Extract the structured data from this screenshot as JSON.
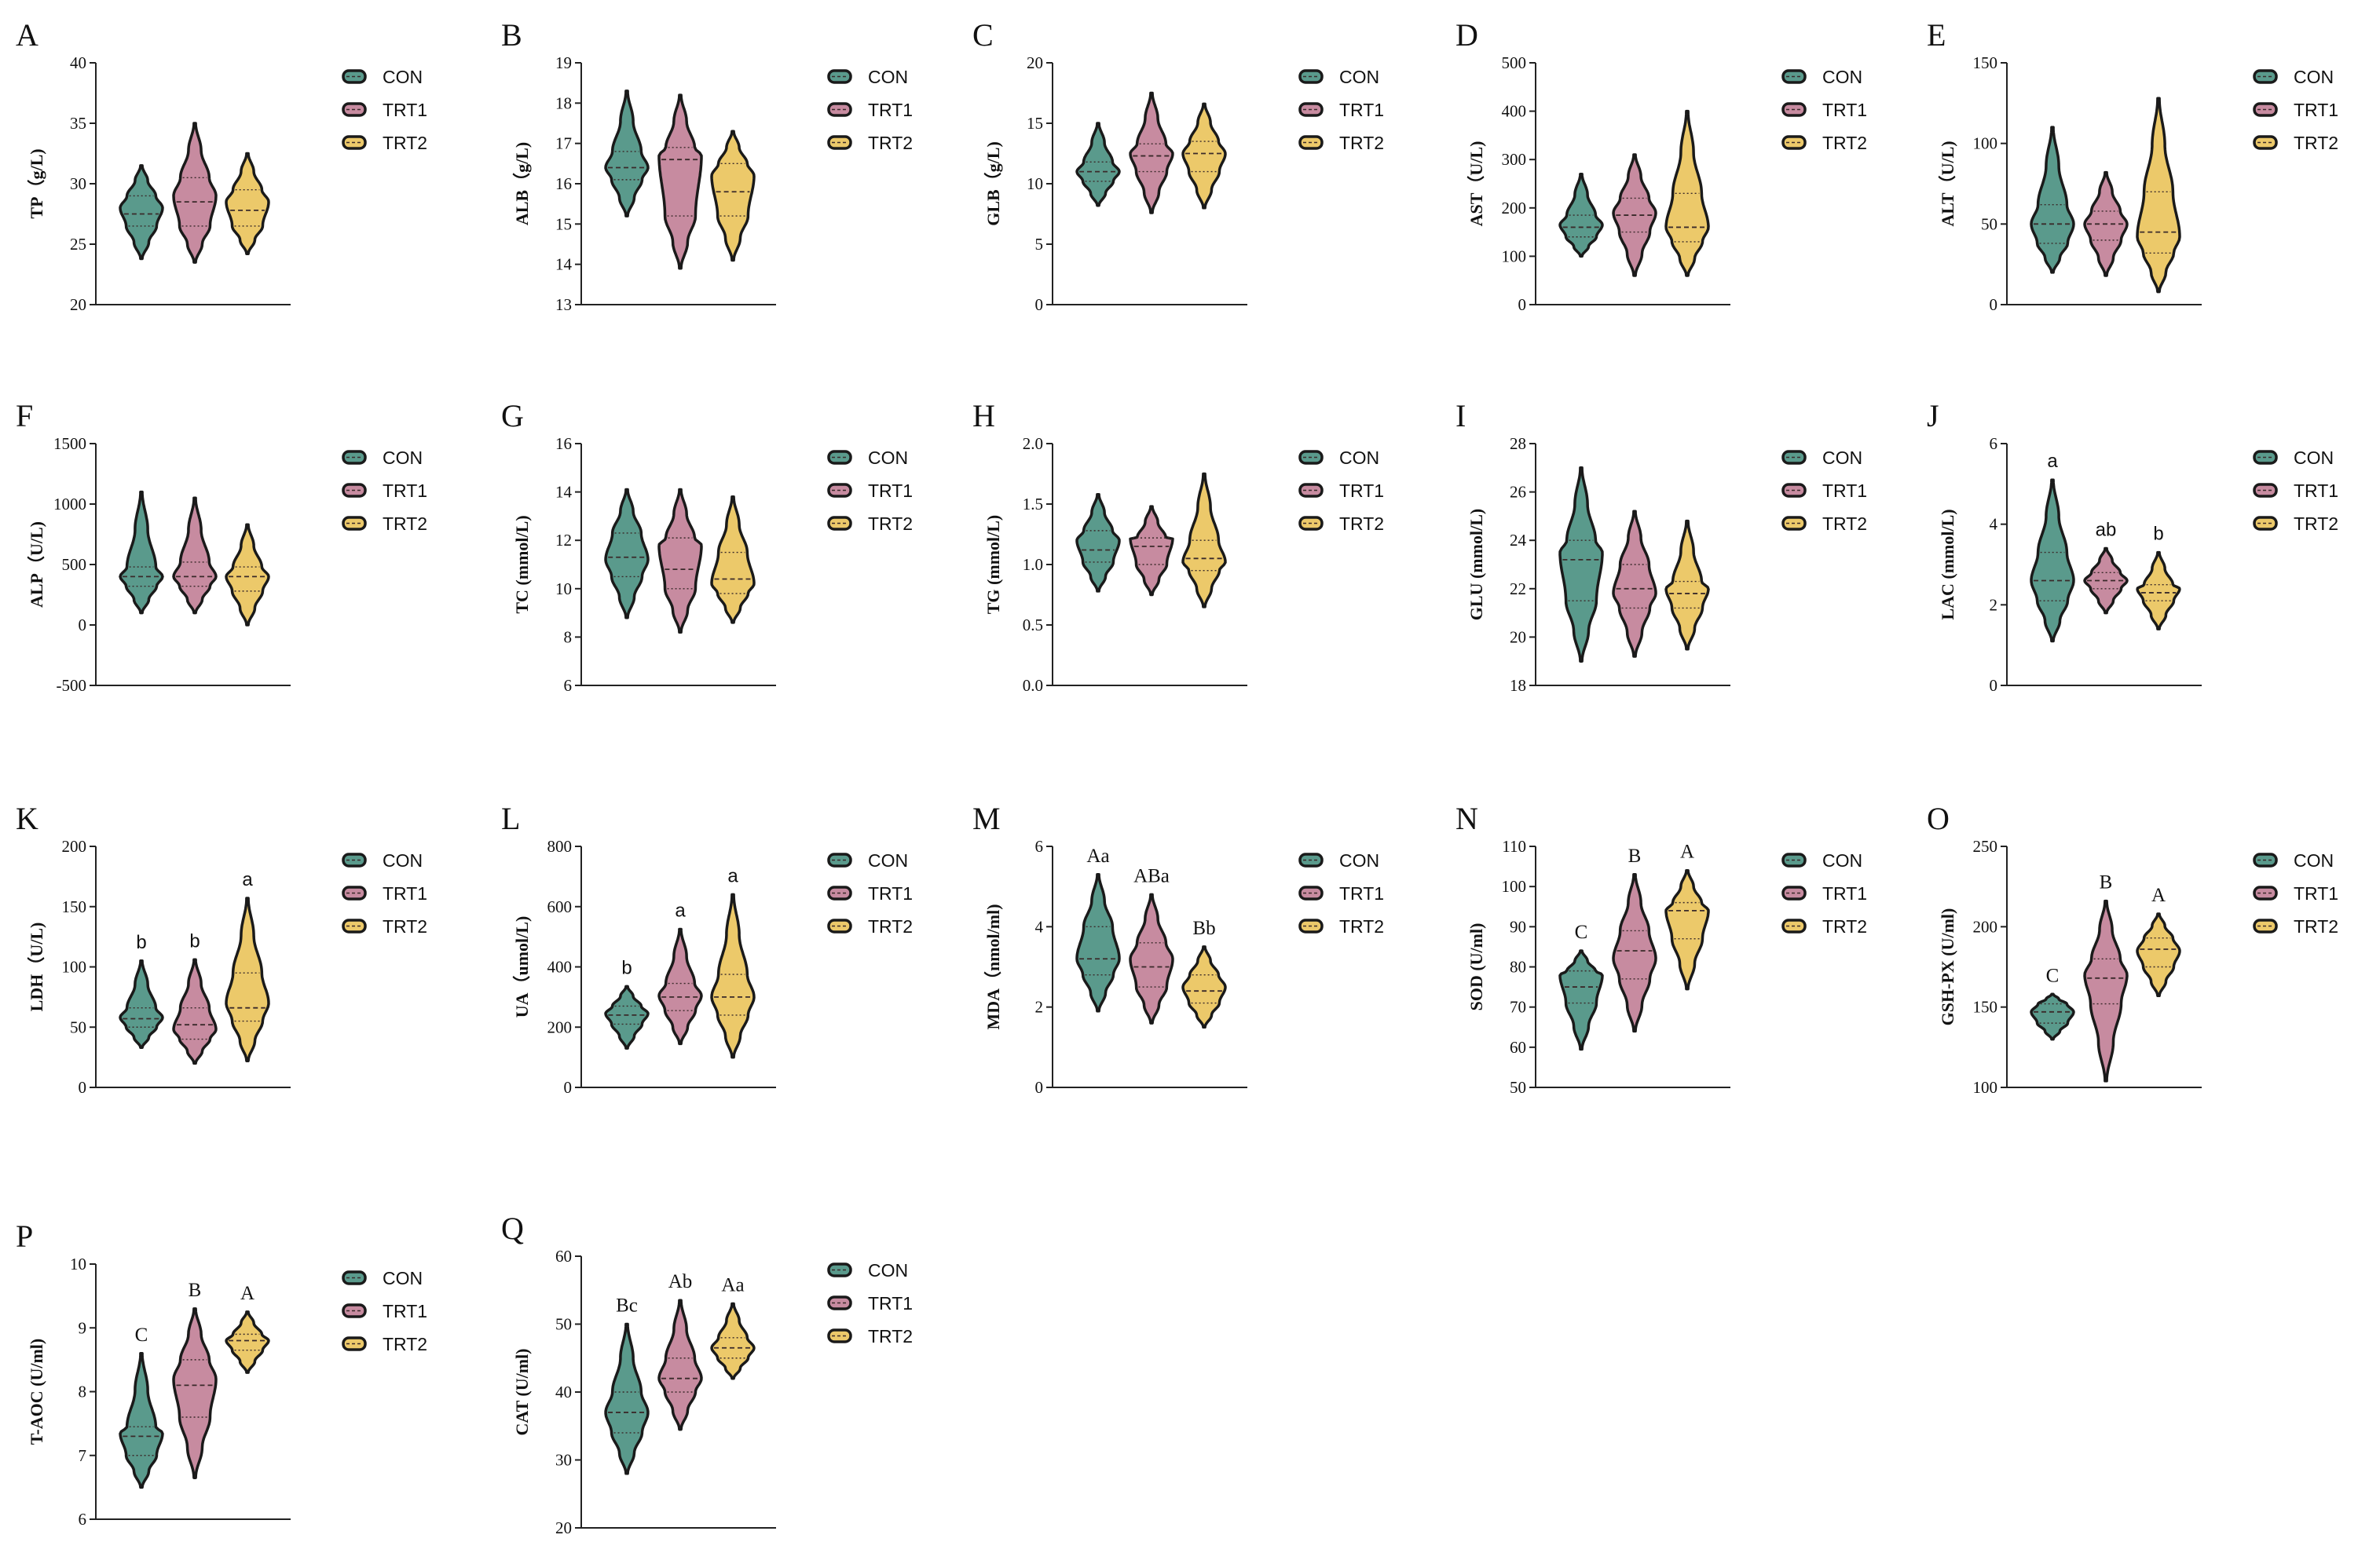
{
  "groups": [
    "CON",
    "TRT1",
    "TRT2"
  ],
  "colors": {
    "CON": "#5a9a8c",
    "TRT1": "#c78ba0",
    "TRT2": "#ecc96a",
    "outline": "#1a1a1a"
  },
  "chart_data": [
    {
      "panel": "A",
      "type": "violin",
      "ylabel": "TP（g/L)",
      "yticks": [
        20,
        25,
        30,
        35,
        40
      ],
      "ylim": [
        20,
        40
      ],
      "series": [
        {
          "name": "CON",
          "min": 23.8,
          "q1": 26.5,
          "median": 27.5,
          "q3": 29.0,
          "max": 31.5,
          "mode": 28.0
        },
        {
          "name": "TRT1",
          "min": 23.5,
          "q1": 26.5,
          "median": 28.5,
          "q3": 30.5,
          "max": 35.0,
          "mode": 29.0
        },
        {
          "name": "TRT2",
          "min": 24.2,
          "q1": 26.5,
          "median": 27.8,
          "q3": 29.5,
          "max": 32.5,
          "mode": 28.5
        }
      ],
      "sig": []
    },
    {
      "panel": "B",
      "type": "violin",
      "ylabel": "ALB（g/L)",
      "yticks": [
        13,
        14,
        15,
        16,
        17,
        18,
        19
      ],
      "ylim": [
        13,
        19
      ],
      "series": [
        {
          "name": "CON",
          "min": 15.2,
          "q1": 16.1,
          "median": 16.4,
          "q3": 16.8,
          "max": 18.3,
          "mode": 16.4
        },
        {
          "name": "TRT1",
          "min": 13.9,
          "q1": 15.2,
          "median": 16.6,
          "q3": 16.9,
          "max": 18.2,
          "mode": 16.7
        },
        {
          "name": "TRT2",
          "min": 14.1,
          "q1": 15.2,
          "median": 15.8,
          "q3": 16.5,
          "max": 17.3,
          "mode": 16.2
        }
      ],
      "sig": []
    },
    {
      "panel": "C",
      "type": "violin",
      "ylabel": "GLB（g/L)",
      "yticks": [
        0,
        5,
        10,
        15,
        20
      ],
      "ylim": [
        0,
        20
      ],
      "series": [
        {
          "name": "CON",
          "min": 8.2,
          "q1": 10.2,
          "median": 11.0,
          "q3": 11.8,
          "max": 15.0,
          "mode": 11.0
        },
        {
          "name": "TRT1",
          "min": 7.6,
          "q1": 11.0,
          "median": 12.3,
          "q3": 13.3,
          "max": 17.5,
          "mode": 12.5
        },
        {
          "name": "TRT2",
          "min": 8.0,
          "q1": 11.0,
          "median": 12.5,
          "q3": 13.5,
          "max": 16.6,
          "mode": 12.5
        }
      ],
      "sig": []
    },
    {
      "panel": "D",
      "type": "violin",
      "ylabel": "AST（U/L)",
      "yticks": [
        0,
        100,
        200,
        300,
        400,
        500
      ],
      "ylim": [
        0,
        500
      ],
      "series": [
        {
          "name": "CON",
          "min": 100,
          "q1": 140,
          "median": 160,
          "q3": 185,
          "max": 270,
          "mode": 165
        },
        {
          "name": "TRT1",
          "min": 60,
          "q1": 150,
          "median": 185,
          "q3": 220,
          "max": 310,
          "mode": 190
        },
        {
          "name": "TRT2",
          "min": 60,
          "q1": 130,
          "median": 160,
          "q3": 230,
          "max": 400,
          "mode": 160
        }
      ],
      "sig": []
    },
    {
      "panel": "E",
      "type": "violin",
      "ylabel": "ALT（U/L)",
      "yticks": [
        0,
        50,
        100,
        150
      ],
      "ylim": [
        0,
        150
      ],
      "series": [
        {
          "name": "CON",
          "min": 20,
          "q1": 38,
          "median": 50,
          "q3": 62,
          "max": 110,
          "mode": 50
        },
        {
          "name": "TRT1",
          "min": 18,
          "q1": 40,
          "median": 50,
          "q3": 58,
          "max": 82,
          "mode": 50
        },
        {
          "name": "TRT2",
          "min": 8,
          "q1": 32,
          "median": 45,
          "q3": 70,
          "max": 128,
          "mode": 42
        }
      ],
      "sig": []
    },
    {
      "panel": "F",
      "type": "violin",
      "ylabel": "ALP（U/L)",
      "yticks": [
        -500,
        0,
        500,
        1000,
        1500
      ],
      "ylim": [
        -500,
        1500
      ],
      "series": [
        {
          "name": "CON",
          "min": 100,
          "q1": 320,
          "median": 400,
          "q3": 480,
          "max": 1100,
          "mode": 400
        },
        {
          "name": "TRT1",
          "min": 100,
          "q1": 320,
          "median": 400,
          "q3": 520,
          "max": 1050,
          "mode": 400
        },
        {
          "name": "TRT2",
          "min": 0,
          "q1": 280,
          "median": 400,
          "q3": 480,
          "max": 830,
          "mode": 400
        }
      ],
      "sig": []
    },
    {
      "panel": "G",
      "type": "violin",
      "ylabel": "TC (mmol/L)",
      "yticks": [
        6,
        8,
        10,
        12,
        14,
        16
      ],
      "ylim": [
        6,
        16
      ],
      "series": [
        {
          "name": "CON",
          "min": 8.8,
          "q1": 10.5,
          "median": 11.3,
          "q3": 12.3,
          "max": 14.1,
          "mode": 11.2
        },
        {
          "name": "TRT1",
          "min": 8.2,
          "q1": 10.0,
          "median": 10.8,
          "q3": 12.1,
          "max": 14.1,
          "mode": 11.8
        },
        {
          "name": "TRT2",
          "min": 8.6,
          "q1": 9.8,
          "median": 10.4,
          "q3": 11.5,
          "max": 13.8,
          "mode": 10.2
        }
      ],
      "sig": []
    },
    {
      "panel": "H",
      "type": "violin",
      "ylabel": "TG (mmol/L)",
      "yticks": [
        0.0,
        0.5,
        1.0,
        1.5,
        2.0
      ],
      "yticklabels": [
        "0.0",
        "0.5",
        "1.0",
        "1.5",
        "2.0"
      ],
      "ylim": [
        0,
        2
      ],
      "series": [
        {
          "name": "CON",
          "min": 0.78,
          "q1": 1.02,
          "median": 1.12,
          "q3": 1.28,
          "max": 1.58,
          "mode": 1.2
        },
        {
          "name": "TRT1",
          "min": 0.75,
          "q1": 1.0,
          "median": 1.15,
          "q3": 1.22,
          "max": 1.48,
          "mode": 1.22
        },
        {
          "name": "TRT2",
          "min": 0.65,
          "q1": 0.95,
          "median": 1.05,
          "q3": 1.2,
          "max": 1.75,
          "mode": 1.02
        }
      ],
      "sig": []
    },
    {
      "panel": "I",
      "type": "violin",
      "ylabel": "GLU (mmol/L)",
      "yticks": [
        18,
        20,
        22,
        24,
        26,
        28
      ],
      "ylim": [
        18,
        28
      ],
      "series": [
        {
          "name": "CON",
          "min": 19.0,
          "q1": 21.5,
          "median": 23.2,
          "q3": 24.0,
          "max": 27.0,
          "mode": 23.5
        },
        {
          "name": "TRT1",
          "min": 19.2,
          "q1": 21.2,
          "median": 22.0,
          "q3": 23.0,
          "max": 25.2,
          "mode": 21.8
        },
        {
          "name": "TRT2",
          "min": 19.5,
          "q1": 21.2,
          "median": 21.8,
          "q3": 22.3,
          "max": 24.8,
          "mode": 22.0
        }
      ],
      "sig": []
    },
    {
      "panel": "J",
      "type": "violin",
      "ylabel": "LAC (mmol/L)",
      "yticks": [
        0,
        2,
        4,
        6
      ],
      "ylim": [
        0,
        6
      ],
      "series": [
        {
          "name": "CON",
          "min": 1.1,
          "q1": 2.1,
          "median": 2.6,
          "q3": 3.3,
          "max": 5.1,
          "mode": 2.6
        },
        {
          "name": "TRT1",
          "min": 1.8,
          "q1": 2.4,
          "median": 2.6,
          "q3": 2.8,
          "max": 3.4,
          "mode": 2.6
        },
        {
          "name": "TRT2",
          "min": 1.4,
          "q1": 2.1,
          "median": 2.3,
          "q3": 2.5,
          "max": 3.3,
          "mode": 2.4
        }
      ],
      "sig": [
        "a",
        "ab",
        "b"
      ]
    },
    {
      "panel": "K",
      "type": "violin",
      "ylabel": "LDH（U/L)",
      "yticks": [
        0,
        50,
        100,
        150,
        200
      ],
      "ylim": [
        0,
        200
      ],
      "series": [
        {
          "name": "CON",
          "min": 33,
          "q1": 50,
          "median": 57,
          "q3": 66,
          "max": 105,
          "mode": 58
        },
        {
          "name": "TRT1",
          "min": 20,
          "q1": 40,
          "median": 52,
          "q3": 66,
          "max": 106,
          "mode": 48
        },
        {
          "name": "TRT2",
          "min": 22,
          "q1": 55,
          "median": 66,
          "q3": 95,
          "max": 157,
          "mode": 70
        }
      ],
      "sig": [
        "b",
        "b",
        "a"
      ]
    },
    {
      "panel": "L",
      "type": "violin",
      "ylabel": "UA（umol/L)",
      "yticks": [
        0,
        200,
        400,
        600,
        800
      ],
      "ylim": [
        0,
        800
      ],
      "series": [
        {
          "name": "CON",
          "min": 130,
          "q1": 210,
          "median": 240,
          "q3": 270,
          "max": 335,
          "mode": 245
        },
        {
          "name": "TRT1",
          "min": 145,
          "q1": 255,
          "median": 300,
          "q3": 345,
          "max": 525,
          "mode": 305
        },
        {
          "name": "TRT2",
          "min": 100,
          "q1": 240,
          "median": 300,
          "q3": 375,
          "max": 640,
          "mode": 300
        }
      ],
      "sig": [
        "b",
        "a",
        "a"
      ]
    },
    {
      "panel": "M",
      "type": "violin",
      "ylabel": "MDA（nmol/ml)",
      "yticks": [
        0,
        2,
        4,
        6
      ],
      "ylim": [
        0,
        6
      ],
      "series": [
        {
          "name": "CON",
          "min": 1.9,
          "q1": 2.8,
          "median": 3.2,
          "q3": 4.0,
          "max": 5.3,
          "mode": 3.2
        },
        {
          "name": "TRT1",
          "min": 1.6,
          "q1": 2.5,
          "median": 3.0,
          "q3": 3.6,
          "max": 4.8,
          "mode": 3.2
        },
        {
          "name": "TRT2",
          "min": 1.5,
          "q1": 2.1,
          "median": 2.4,
          "q3": 2.8,
          "max": 3.5,
          "mode": 2.5
        }
      ],
      "sig": [
        "Aa",
        "ABa",
        "Bb"
      ]
    },
    {
      "panel": "N",
      "type": "violin",
      "ylabel": "SOD (U/ml)",
      "yticks": [
        50,
        60,
        70,
        80,
        90,
        100,
        110
      ],
      "ylim": [
        50,
        110
      ],
      "series": [
        {
          "name": "CON",
          "min": 59.5,
          "q1": 71,
          "median": 75,
          "q3": 79,
          "max": 84,
          "mode": 78
        },
        {
          "name": "TRT1",
          "min": 64,
          "q1": 77,
          "median": 84,
          "q3": 89,
          "max": 103,
          "mode": 82
        },
        {
          "name": "TRT2",
          "min": 74.5,
          "q1": 87,
          "median": 94,
          "q3": 96,
          "max": 104,
          "mode": 94
        }
      ],
      "sig": [
        "C",
        "B",
        "A"
      ]
    },
    {
      "panel": "O",
      "type": "violin",
      "ylabel": "GSH-PX (U/ml)",
      "yticks": [
        100,
        150,
        200,
        250
      ],
      "ylim": [
        100,
        250
      ],
      "series": [
        {
          "name": "CON",
          "min": 130,
          "q1": 140,
          "median": 147,
          "q3": 152,
          "max": 158,
          "mode": 147
        },
        {
          "name": "TRT1",
          "min": 104,
          "q1": 152,
          "median": 168,
          "q3": 180,
          "max": 216,
          "mode": 170
        },
        {
          "name": "TRT2",
          "min": 157,
          "q1": 175,
          "median": 186,
          "q3": 193,
          "max": 208,
          "mode": 185
        }
      ],
      "sig": [
        "C",
        "B",
        "A"
      ]
    },
    {
      "panel": "P",
      "type": "violin",
      "ylabel": "T-AOC (U/ml)",
      "yticks": [
        6,
        7,
        8,
        9,
        10
      ],
      "ylim": [
        6,
        10
      ],
      "series": [
        {
          "name": "CON",
          "min": 6.5,
          "q1": 7.0,
          "median": 7.3,
          "q3": 7.45,
          "max": 8.6,
          "mode": 7.35
        },
        {
          "name": "TRT1",
          "min": 6.65,
          "q1": 7.6,
          "median": 8.1,
          "q3": 8.5,
          "max": 9.3,
          "mode": 8.2
        },
        {
          "name": "TRT2",
          "min": 8.3,
          "q1": 8.65,
          "median": 8.8,
          "q3": 8.9,
          "max": 9.25,
          "mode": 8.8
        }
      ],
      "sig": [
        "C",
        "B",
        "A"
      ]
    },
    {
      "panel": "Q",
      "type": "violin",
      "ylabel": "CAT (U/ml)",
      "yticks": [
        20,
        30,
        40,
        50,
        60
      ],
      "ylim": [
        20,
        60
      ],
      "series": [
        {
          "name": "CON",
          "min": 28,
          "q1": 34,
          "median": 37,
          "q3": 40,
          "max": 50,
          "mode": 37
        },
        {
          "name": "TRT1",
          "min": 34.5,
          "q1": 40,
          "median": 42,
          "q3": 45,
          "max": 53.5,
          "mode": 42
        },
        {
          "name": "TRT2",
          "min": 42,
          "q1": 45,
          "median": 46.5,
          "q3": 48,
          "max": 53,
          "mode": 46.5
        }
      ],
      "sig": [
        "Bc",
        "Ab",
        "Aa"
      ]
    }
  ]
}
